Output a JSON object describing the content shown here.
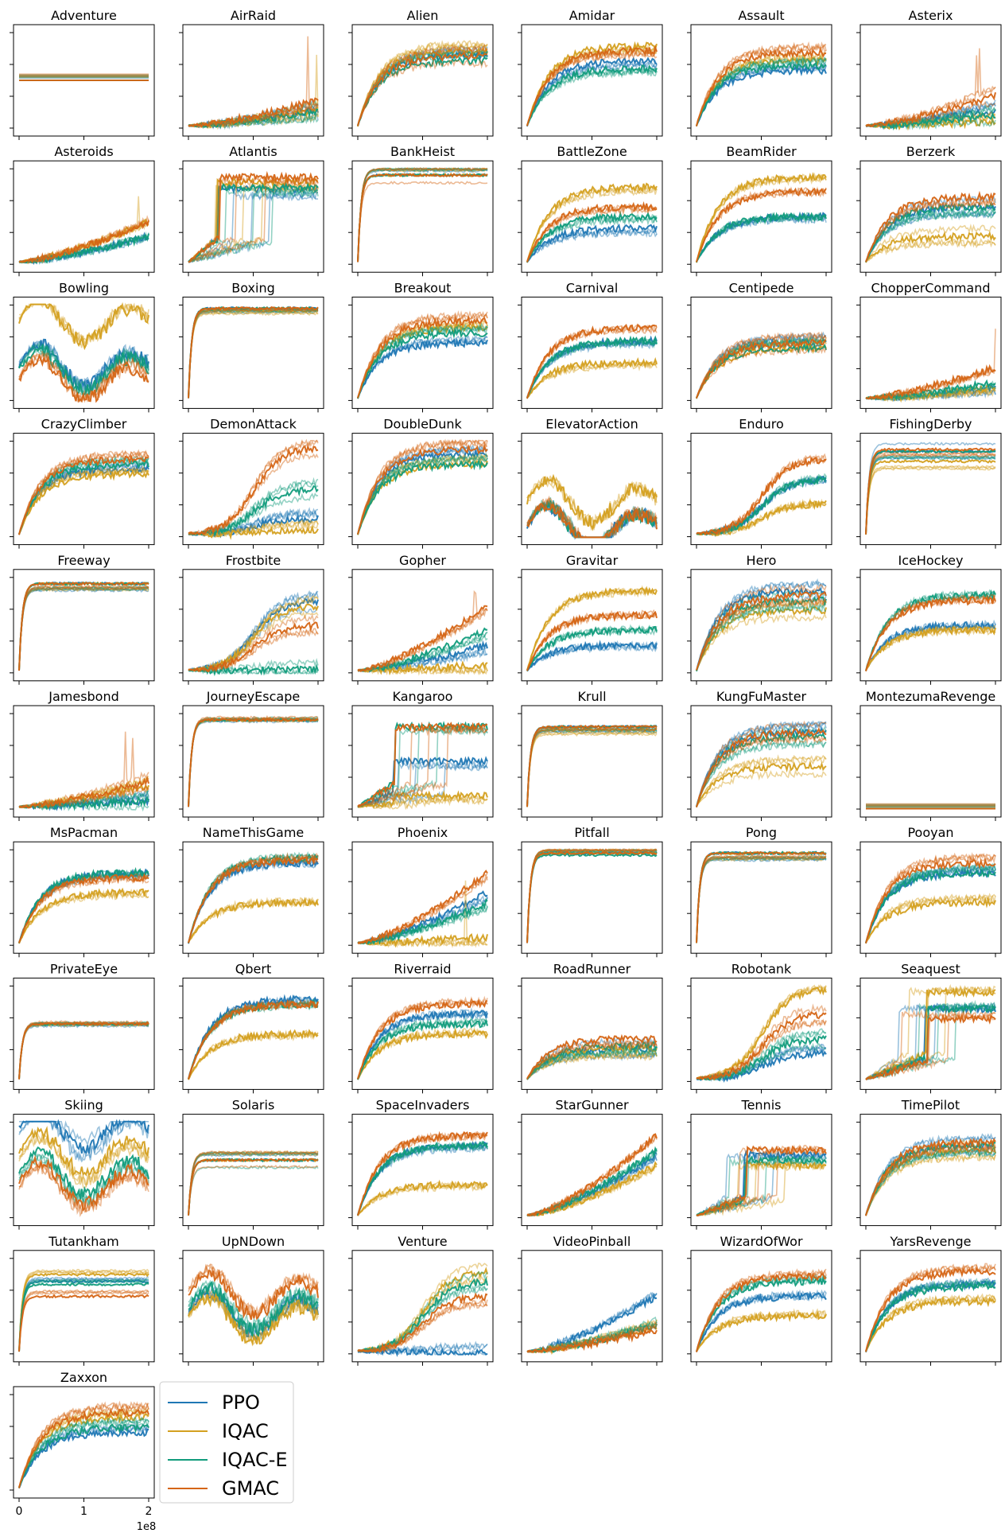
{
  "figure": {
    "legend": {
      "entries": [
        {
          "label": "PPO",
          "color": "#1f77b4"
        },
        {
          "label": "IQAC",
          "color": "#d4a020"
        },
        {
          "label": "IQAC-E",
          "color": "#119c7c"
        },
        {
          "label": "GMAC",
          "color": "#d56515"
        }
      ]
    },
    "x_axis": {
      "ticks": [
        {
          "value": 0,
          "label": "0"
        },
        {
          "value": 1,
          "label": "1"
        },
        {
          "value": 2,
          "label": "2"
        }
      ],
      "offset_label": "1e8",
      "range": [
        0,
        2
      ]
    }
  },
  "chart_data": [
    {
      "type": "line",
      "title": "Adventure",
      "series_order": [
        "PPO",
        "IQAC",
        "IQAC-E",
        "GMAC"
      ],
      "final": [
        0.5,
        0.5,
        0.5,
        0.5
      ],
      "style": "flat"
    },
    {
      "type": "line",
      "title": "AirRaid",
      "series_order": [
        "PPO",
        "IQAC",
        "IQAC-E",
        "GMAC"
      ],
      "final": [
        0.2,
        0.2,
        0.19,
        0.3
      ],
      "style": "growth",
      "spike": 0.95
    },
    {
      "type": "line",
      "title": "Alien",
      "series_order": [
        "PPO",
        "IQAC",
        "IQAC-E",
        "GMAC"
      ],
      "final": [
        0.75,
        0.8,
        0.7,
        0.75
      ],
      "style": "fast"
    },
    {
      "type": "line",
      "title": "Amidar",
      "series_order": [
        "PPO",
        "IQAC",
        "IQAC-E",
        "GMAC"
      ],
      "final": [
        0.7,
        0.85,
        0.62,
        0.8
      ],
      "style": "fast"
    },
    {
      "type": "line",
      "title": "Assault",
      "series_order": [
        "PPO",
        "IQAC",
        "IQAC-E",
        "GMAC"
      ],
      "final": [
        0.6,
        0.7,
        0.65,
        0.78
      ],
      "style": "fast"
    },
    {
      "type": "line",
      "title": "Asterix",
      "series_order": [
        "PPO",
        "IQAC",
        "IQAC-E",
        "GMAC"
      ],
      "final": [
        0.2,
        0.08,
        0.15,
        0.35
      ],
      "style": "growth",
      "spike": 0.9
    },
    {
      "type": "line",
      "title": "Asteroids",
      "series_order": [
        "PPO",
        "IQAC",
        "IQAC-E",
        "GMAC"
      ],
      "final": [
        0.3,
        0.45,
        0.3,
        0.45
      ],
      "style": "growth",
      "spike": 0.95
    },
    {
      "type": "line",
      "title": "Atlantis",
      "series_order": [
        "PPO",
        "IQAC",
        "IQAC-E",
        "GMAC"
      ],
      "final": [
        0.78,
        0.85,
        0.8,
        0.9
      ],
      "style": "step"
    },
    {
      "type": "line",
      "title": "BankHeist",
      "series_order": [
        "PPO",
        "IQAC",
        "IQAC-E",
        "GMAC"
      ],
      "final": [
        0.92,
        0.92,
        0.92,
        0.92
      ],
      "style": "sat"
    },
    {
      "type": "line",
      "title": "BattleZone",
      "series_order": [
        "PPO",
        "IQAC",
        "IQAC-E",
        "GMAC"
      ],
      "final": [
        0.38,
        0.8,
        0.5,
        0.6
      ],
      "style": "fast"
    },
    {
      "type": "line",
      "title": "BeamRider",
      "series_order": [
        "PPO",
        "IQAC",
        "IQAC-E",
        "GMAC"
      ],
      "final": [
        0.5,
        0.9,
        0.5,
        0.75
      ],
      "style": "fast"
    },
    {
      "type": "line",
      "title": "Berzerk",
      "series_order": [
        "PPO",
        "IQAC",
        "IQAC-E",
        "GMAC"
      ],
      "final": [
        0.6,
        0.3,
        0.6,
        0.7
      ],
      "style": "fast"
    },
    {
      "type": "line",
      "title": "Bowling",
      "series_order": [
        "PPO",
        "IQAC",
        "IQAC-E",
        "GMAC"
      ],
      "final": [
        0.35,
        0.8,
        0.3,
        0.2
      ],
      "style": "noisy"
    },
    {
      "type": "line",
      "title": "Boxing",
      "series_order": [
        "PPO",
        "IQAC",
        "IQAC-E",
        "GMAC"
      ],
      "final": [
        0.95,
        0.93,
        0.95,
        0.95
      ],
      "style": "sat"
    },
    {
      "type": "line",
      "title": "Breakout",
      "series_order": [
        "PPO",
        "IQAC",
        "IQAC-E",
        "GMAC"
      ],
      "final": [
        0.6,
        0.75,
        0.7,
        0.82
      ],
      "style": "fast"
    },
    {
      "type": "line",
      "title": "Carnival",
      "series_order": [
        "PPO",
        "IQAC",
        "IQAC-E",
        "GMAC"
      ],
      "final": [
        0.62,
        0.4,
        0.62,
        0.75
      ],
      "style": "fast"
    },
    {
      "type": "line",
      "title": "Centipede",
      "series_order": [
        "PPO",
        "IQAC",
        "IQAC-E",
        "GMAC"
      ],
      "final": [
        0.6,
        0.55,
        0.55,
        0.6
      ],
      "style": "fast"
    },
    {
      "type": "line",
      "title": "ChopperCommand",
      "series_order": [
        "PPO",
        "IQAC",
        "IQAC-E",
        "GMAC"
      ],
      "final": [
        0.15,
        0.15,
        0.2,
        0.35
      ],
      "style": "growth",
      "spike": 0.9
    },
    {
      "type": "line",
      "title": "CrazyClimber",
      "series_order": [
        "PPO",
        "IQAC",
        "IQAC-E",
        "GMAC"
      ],
      "final": [
        0.7,
        0.65,
        0.75,
        0.8
      ],
      "style": "fast"
    },
    {
      "type": "line",
      "title": "DemonAttack",
      "series_order": [
        "PPO",
        "IQAC",
        "IQAC-E",
        "GMAC"
      ],
      "final": [
        0.2,
        0.08,
        0.5,
        0.92
      ],
      "style": "late"
    },
    {
      "type": "line",
      "title": "DoubleDunk",
      "series_order": [
        "PPO",
        "IQAC",
        "IQAC-E",
        "GMAC"
      ],
      "final": [
        0.85,
        0.75,
        0.75,
        0.9
      ],
      "style": "fast"
    },
    {
      "type": "line",
      "title": "ElevatorAction",
      "series_order": [
        "PPO",
        "IQAC",
        "IQAC-E",
        "GMAC"
      ],
      "final": [
        0.1,
        0.35,
        0.1,
        0.1
      ],
      "style": "noisy"
    },
    {
      "type": "line",
      "title": "Enduro",
      "series_order": [
        "PPO",
        "IQAC",
        "IQAC-E",
        "GMAC"
      ],
      "final": [
        0.6,
        0.35,
        0.6,
        0.8
      ],
      "style": "late"
    },
    {
      "type": "line",
      "title": "FishingDerby",
      "series_order": [
        "PPO",
        "IQAC",
        "IQAC-E",
        "GMAC"
      ],
      "final": [
        0.88,
        0.78,
        0.88,
        0.9
      ],
      "style": "sat"
    },
    {
      "type": "line",
      "title": "Freeway",
      "series_order": [
        "PPO",
        "IQAC",
        "IQAC-E",
        "GMAC"
      ],
      "final": [
        0.92,
        0.92,
        0.92,
        0.92
      ],
      "style": "sat"
    },
    {
      "type": "line",
      "title": "Frostbite",
      "series_order": [
        "PPO",
        "IQAC",
        "IQAC-E",
        "GMAC"
      ],
      "final": [
        0.75,
        0.7,
        0.05,
        0.5
      ],
      "style": "late"
    },
    {
      "type": "line",
      "title": "Gopher",
      "series_order": [
        "PPO",
        "IQAC",
        "IQAC-E",
        "GMAC"
      ],
      "final": [
        0.3,
        0.1,
        0.45,
        0.7
      ],
      "style": "growth",
      "spike": 0.9
    },
    {
      "type": "line",
      "title": "Gravitar",
      "series_order": [
        "PPO",
        "IQAC",
        "IQAC-E",
        "GMAC"
      ],
      "final": [
        0.3,
        0.85,
        0.45,
        0.6
      ],
      "style": "fast"
    },
    {
      "type": "line",
      "title": "Hero",
      "series_order": [
        "PPO",
        "IQAC",
        "IQAC-E",
        "GMAC"
      ],
      "final": [
        0.85,
        0.65,
        0.75,
        0.8
      ],
      "style": "fast"
    },
    {
      "type": "line",
      "title": "IceHockey",
      "series_order": [
        "PPO",
        "IQAC",
        "IQAC-E",
        "GMAC"
      ],
      "final": [
        0.5,
        0.45,
        0.8,
        0.75
      ],
      "style": "fast"
    },
    {
      "type": "line",
      "title": "Jamesbond",
      "series_order": [
        "PPO",
        "IQAC",
        "IQAC-E",
        "GMAC"
      ],
      "final": [
        0.1,
        0.25,
        0.1,
        0.3
      ],
      "style": "growth",
      "spike": 0.85
    },
    {
      "type": "line",
      "title": "JourneyEscape",
      "series_order": [
        "PPO",
        "IQAC",
        "IQAC-E",
        "GMAC"
      ],
      "final": [
        0.92,
        0.92,
        0.92,
        0.92
      ],
      "style": "sat"
    },
    {
      "type": "line",
      "title": "Kangaroo",
      "series_order": [
        "PPO",
        "IQAC",
        "IQAC-E",
        "GMAC"
      ],
      "final": [
        0.5,
        0.15,
        0.85,
        0.85
      ],
      "style": "step"
    },
    {
      "type": "line",
      "title": "Krull",
      "series_order": [
        "PPO",
        "IQAC",
        "IQAC-E",
        "GMAC"
      ],
      "final": [
        0.85,
        0.82,
        0.85,
        0.85
      ],
      "style": "sat"
    },
    {
      "type": "line",
      "title": "KungFuMaster",
      "series_order": [
        "PPO",
        "IQAC",
        "IQAC-E",
        "GMAC"
      ],
      "final": [
        0.8,
        0.45,
        0.75,
        0.8
      ],
      "style": "fast"
    },
    {
      "type": "line",
      "title": "MontezumaRevenge",
      "series_order": [
        "PPO",
        "IQAC",
        "IQAC-E",
        "GMAC"
      ],
      "final": [
        0.02,
        0.02,
        0.02,
        0.02
      ],
      "style": "flat"
    },
    {
      "type": "line",
      "title": "MsPacman",
      "series_order": [
        "PPO",
        "IQAC",
        "IQAC-E",
        "GMAC"
      ],
      "final": [
        0.75,
        0.55,
        0.75,
        0.7
      ],
      "style": "fast"
    },
    {
      "type": "line",
      "title": "NameThisGame",
      "series_order": [
        "PPO",
        "IQAC",
        "IQAC-E",
        "GMAC"
      ],
      "final": [
        0.85,
        0.45,
        0.9,
        0.88
      ],
      "style": "fast"
    },
    {
      "type": "line",
      "title": "Phoenix",
      "series_order": [
        "PPO",
        "IQAC",
        "IQAC-E",
        "GMAC"
      ],
      "final": [
        0.55,
        0.1,
        0.45,
        0.75
      ],
      "style": "growth",
      "spike": 0.9
    },
    {
      "type": "line",
      "title": "Pitfall",
      "series_order": [
        "PPO",
        "IQAC",
        "IQAC-E",
        "GMAC"
      ],
      "final": [
        0.95,
        0.95,
        0.93,
        0.95
      ],
      "style": "sat"
    },
    {
      "type": "line",
      "title": "Pong",
      "series_order": [
        "PPO",
        "IQAC",
        "IQAC-E",
        "GMAC"
      ],
      "final": [
        0.95,
        0.95,
        0.95,
        0.95
      ],
      "style": "sat"
    },
    {
      "type": "line",
      "title": "Pooyan",
      "series_order": [
        "PPO",
        "IQAC",
        "IQAC-E",
        "GMAC"
      ],
      "final": [
        0.75,
        0.45,
        0.75,
        0.85
      ],
      "style": "fast"
    },
    {
      "type": "line",
      "title": "PrivateEye",
      "series_order": [
        "PPO",
        "IQAC",
        "IQAC-E",
        "GMAC"
      ],
      "final": [
        0.6,
        0.6,
        0.6,
        0.6
      ],
      "style": "sat"
    },
    {
      "type": "line",
      "title": "Qbert",
      "series_order": [
        "PPO",
        "IQAC",
        "IQAC-E",
        "GMAC"
      ],
      "final": [
        0.85,
        0.5,
        0.8,
        0.8
      ],
      "style": "fast"
    },
    {
      "type": "line",
      "title": "Riverraid",
      "series_order": [
        "PPO",
        "IQAC",
        "IQAC-E",
        "GMAC"
      ],
      "final": [
        0.7,
        0.5,
        0.6,
        0.8
      ],
      "style": "fast"
    },
    {
      "type": "line",
      "title": "RoadRunner",
      "series_order": [
        "PPO",
        "IQAC",
        "IQAC-E",
        "GMAC"
      ],
      "final": [
        0.35,
        0.35,
        0.38,
        0.45
      ],
      "style": "fast"
    },
    {
      "type": "line",
      "title": "Robotank",
      "series_order": [
        "PPO",
        "IQAC",
        "IQAC-E",
        "GMAC"
      ],
      "final": [
        0.3,
        0.95,
        0.45,
        0.7
      ],
      "style": "late"
    },
    {
      "type": "line",
      "title": "Seaquest",
      "series_order": [
        "PPO",
        "IQAC",
        "IQAC-E",
        "GMAC"
      ],
      "final": [
        0.75,
        0.92,
        0.75,
        0.65
      ],
      "style": "step"
    },
    {
      "type": "line",
      "title": "Skiing",
      "series_order": [
        "PPO",
        "IQAC",
        "IQAC-E",
        "GMAC"
      ],
      "final": [
        0.9,
        0.65,
        0.45,
        0.35
      ],
      "style": "noisy"
    },
    {
      "type": "line",
      "title": "Solaris",
      "series_order": [
        "PPO",
        "IQAC",
        "IQAC-E",
        "GMAC"
      ],
      "final": [
        0.6,
        0.6,
        0.6,
        0.6
      ],
      "style": "sat"
    },
    {
      "type": "line",
      "title": "SpaceInvaders",
      "series_order": [
        "PPO",
        "IQAC",
        "IQAC-E",
        "GMAC"
      ],
      "final": [
        0.75,
        0.35,
        0.75,
        0.85
      ],
      "style": "fast"
    },
    {
      "type": "line",
      "title": "StarGunner",
      "series_order": [
        "PPO",
        "IQAC",
        "IQAC-E",
        "GMAC"
      ],
      "final": [
        0.65,
        0.55,
        0.7,
        0.85
      ],
      "style": "growth",
      "spike": 0.95
    },
    {
      "type": "line",
      "title": "Tennis",
      "series_order": [
        "PPO",
        "IQAC",
        "IQAC-E",
        "GMAC"
      ],
      "final": [
        0.65,
        0.55,
        0.6,
        0.7
      ],
      "style": "step"
    },
    {
      "type": "line",
      "title": "TimePilot",
      "series_order": [
        "PPO",
        "IQAC",
        "IQAC-E",
        "GMAC"
      ],
      "final": [
        0.75,
        0.7,
        0.75,
        0.78
      ],
      "style": "fast"
    },
    {
      "type": "line",
      "title": "Tutankham",
      "series_order": [
        "PPO",
        "IQAC",
        "IQAC-E",
        "GMAC"
      ],
      "final": [
        0.75,
        0.82,
        0.72,
        0.6
      ],
      "style": "sat"
    },
    {
      "type": "line",
      "title": "UpNDown",
      "series_order": [
        "PPO",
        "IQAC",
        "IQAC-E",
        "GMAC"
      ],
      "final": [
        0.4,
        0.35,
        0.45,
        0.6
      ],
      "style": "noisy"
    },
    {
      "type": "line",
      "title": "Venture",
      "series_order": [
        "PPO",
        "IQAC",
        "IQAC-E",
        "GMAC"
      ],
      "final": [
        0.02,
        0.85,
        0.75,
        0.6
      ],
      "style": "late"
    },
    {
      "type": "line",
      "title": "VideoPinball",
      "series_order": [
        "PPO",
        "IQAC",
        "IQAC-E",
        "GMAC"
      ],
      "final": [
        0.6,
        0.3,
        0.3,
        0.25
      ],
      "style": "growth",
      "spike": 0.9
    },
    {
      "type": "line",
      "title": "WizardOfWor",
      "series_order": [
        "PPO",
        "IQAC",
        "IQAC-E",
        "GMAC"
      ],
      "final": [
        0.6,
        0.4,
        0.75,
        0.8
      ],
      "style": "fast"
    },
    {
      "type": "line",
      "title": "YarsRevenge",
      "series_order": [
        "PPO",
        "IQAC",
        "IQAC-E",
        "GMAC"
      ],
      "final": [
        0.72,
        0.55,
        0.7,
        0.85
      ],
      "style": "fast"
    },
    {
      "type": "line",
      "title": "Zaxxon",
      "series_order": [
        "PPO",
        "IQAC",
        "IQAC-E",
        "GMAC"
      ],
      "final": [
        0.6,
        0.75,
        0.65,
        0.8
      ],
      "style": "fast"
    }
  ]
}
